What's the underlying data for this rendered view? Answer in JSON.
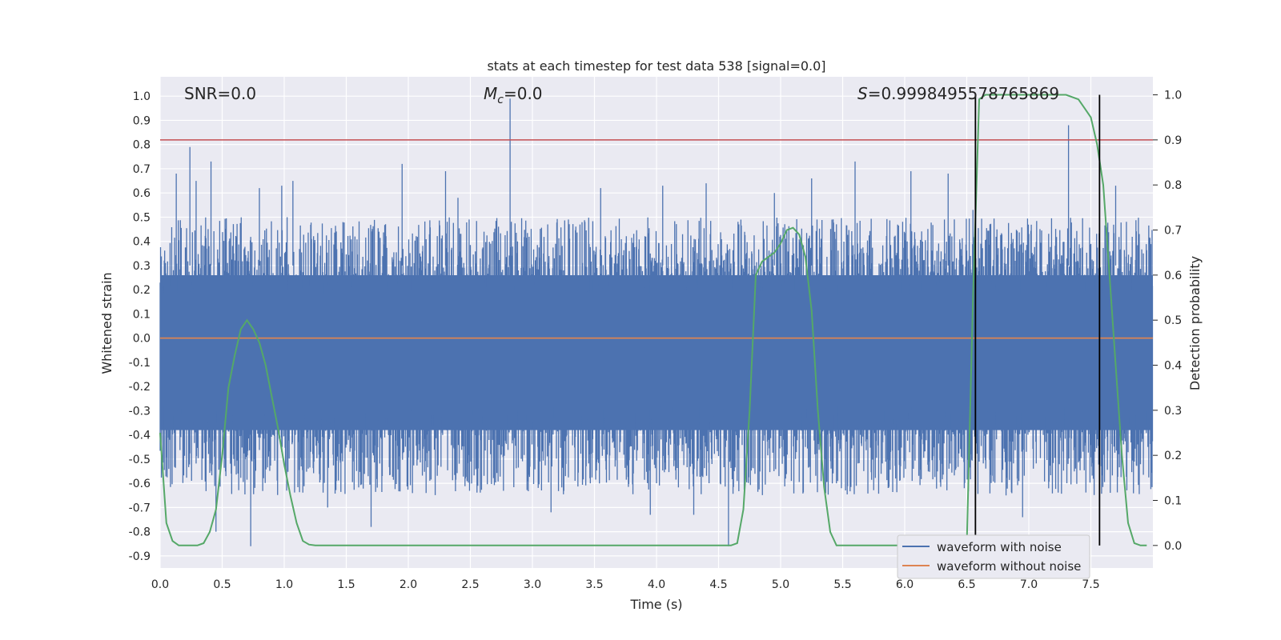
{
  "chart_data": {
    "type": "line",
    "title": "stats at each timestep for test data 538 [signal=0.0]",
    "xlabel": "Time (s)",
    "ylabel_left": "Whitened strain",
    "ylabel_right": "Detection probability",
    "xlim": [
      0.0,
      8.0
    ],
    "ylim_left": [
      -0.95,
      1.08
    ],
    "ylim_right": [
      -0.05,
      1.04
    ],
    "x_ticks": [
      "0.0",
      "0.5",
      "1.0",
      "1.5",
      "2.0",
      "2.5",
      "3.0",
      "3.5",
      "4.0",
      "4.5",
      "5.0",
      "5.5",
      "6.0",
      "6.5",
      "7.0",
      "7.5"
    ],
    "y_left_ticks": [
      "1.0",
      "0.9",
      "0.8",
      "0.7",
      "0.6",
      "0.5",
      "0.4",
      "0.3",
      "0.2",
      "0.1",
      "0.0",
      "-0.1",
      "-0.2",
      "-0.3",
      "-0.4",
      "-0.5",
      "-0.6",
      "-0.7",
      "-0.8",
      "-0.9"
    ],
    "y_right_ticks": [
      "1.0",
      "0.9",
      "0.8",
      "0.7",
      "0.6",
      "0.5",
      "0.4",
      "0.3",
      "0.2",
      "0.1",
      "0.0"
    ],
    "annotations": {
      "snr": "SNR=0.0",
      "mc_symbol": "M",
      "mc_sub": "c",
      "mc_value": "=0.0",
      "s_symbol": "S",
      "s_value": "=0.9998495578765869"
    },
    "legend": {
      "with_noise": "waveform with noise",
      "without_noise": "waveform without noise"
    },
    "colors": {
      "noise": "#4c72b0",
      "clean": "#dd8452",
      "probability": "#55a868",
      "threshold": "#c44e52",
      "marker": "#000000",
      "background": "#eaeaf2",
      "grid": "#ffffff"
    },
    "threshold_probability": 0.9,
    "vertical_markers": [
      6.57,
      7.57
    ],
    "noise_envelope": {
      "typical_max": 0.42,
      "typical_min": -0.55,
      "spikes": [
        {
          "x": 0.24,
          "y": 0.79
        },
        {
          "x": 0.13,
          "y": 0.68
        },
        {
          "x": 0.41,
          "y": 0.73
        },
        {
          "x": 0.29,
          "y": 0.65
        },
        {
          "x": 0.8,
          "y": 0.62
        },
        {
          "x": 0.98,
          "y": 0.63
        },
        {
          "x": 1.07,
          "y": 0.65
        },
        {
          "x": 1.95,
          "y": 0.72
        },
        {
          "x": 2.3,
          "y": 0.69
        },
        {
          "x": 2.4,
          "y": 0.58
        },
        {
          "x": 2.82,
          "y": 0.99
        },
        {
          "x": 3.55,
          "y": 0.62
        },
        {
          "x": 4.05,
          "y": 0.63
        },
        {
          "x": 4.4,
          "y": 0.64
        },
        {
          "x": 4.95,
          "y": 0.6
        },
        {
          "x": 5.25,
          "y": 0.66
        },
        {
          "x": 5.6,
          "y": 0.73
        },
        {
          "x": 6.05,
          "y": 0.69
        },
        {
          "x": 6.35,
          "y": 0.68
        },
        {
          "x": 6.55,
          "y": 0.53
        },
        {
          "x": 7.32,
          "y": 0.88
        },
        {
          "x": 7.7,
          "y": 0.63
        },
        {
          "x": 0.45,
          "y": -0.8
        },
        {
          "x": 0.73,
          "y": -0.86
        },
        {
          "x": 1.7,
          "y": -0.78
        },
        {
          "x": 4.58,
          "y": -0.86
        },
        {
          "x": 6.95,
          "y": -0.74
        },
        {
          "x": 6.48,
          "y": -0.62
        },
        {
          "x": 1.35,
          "y": -0.7
        },
        {
          "x": 3.15,
          "y": -0.72
        },
        {
          "x": 3.95,
          "y": -0.73
        },
        {
          "x": 4.3,
          "y": -0.73
        }
      ]
    },
    "probability_series": {
      "x": [
        0.0,
        0.05,
        0.1,
        0.15,
        0.2,
        0.25,
        0.3,
        0.35,
        0.4,
        0.45,
        0.5,
        0.55,
        0.6,
        0.65,
        0.7,
        0.75,
        0.8,
        0.85,
        0.9,
        0.95,
        1.0,
        1.05,
        1.1,
        1.15,
        1.2,
        1.25,
        1.3,
        4.6,
        4.65,
        4.7,
        4.75,
        4.8,
        4.85,
        4.9,
        4.95,
        5.0,
        5.05,
        5.1,
        5.15,
        5.2,
        5.25,
        5.3,
        5.35,
        5.4,
        5.45,
        5.5,
        5.55,
        5.6,
        6.5,
        6.55,
        6.6,
        6.65,
        6.7,
        7.3,
        7.4,
        7.45,
        7.5,
        7.55,
        7.6,
        7.65,
        7.7,
        7.75,
        7.8,
        7.85,
        7.9,
        7.95
      ],
      "y": [
        0.25,
        0.05,
        0.01,
        0.0,
        0.0,
        0.0,
        0.0,
        0.005,
        0.03,
        0.08,
        0.2,
        0.35,
        0.42,
        0.48,
        0.5,
        0.48,
        0.45,
        0.4,
        0.33,
        0.26,
        0.18,
        0.11,
        0.05,
        0.01,
        0.002,
        0.0,
        0.0,
        0.0,
        0.005,
        0.08,
        0.3,
        0.6,
        0.63,
        0.64,
        0.65,
        0.67,
        0.7,
        0.705,
        0.69,
        0.64,
        0.52,
        0.3,
        0.13,
        0.03,
        0.0,
        0.0,
        0.0,
        0.0,
        0.0,
        0.55,
        0.99,
        1.0,
        1.0,
        1.0,
        0.99,
        0.97,
        0.95,
        0.89,
        0.8,
        0.6,
        0.4,
        0.2,
        0.05,
        0.005,
        0.0,
        0.0
      ]
    }
  }
}
